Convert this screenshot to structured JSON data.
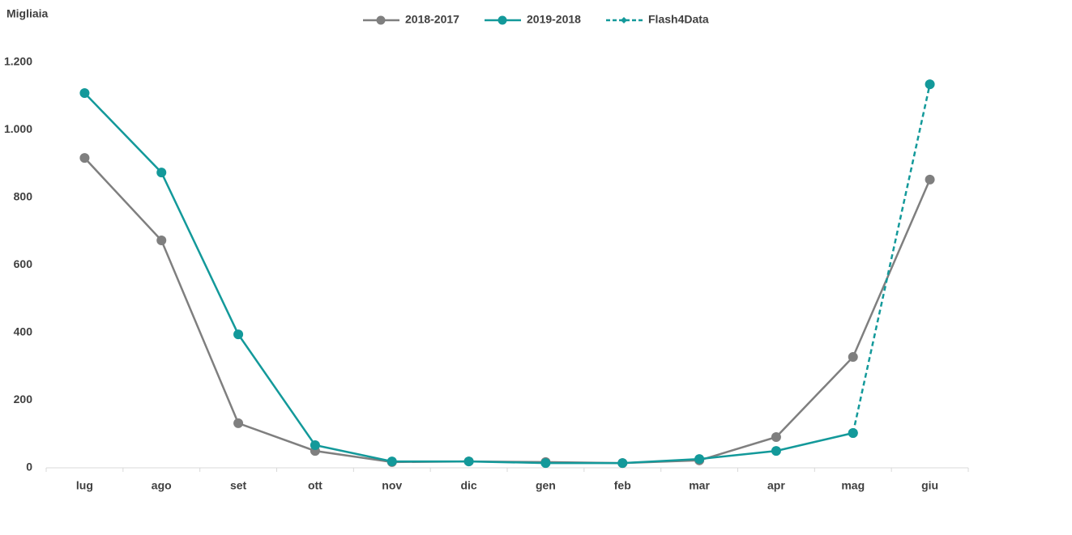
{
  "chart_data": {
    "type": "line",
    "y_label": "Migliaia",
    "categories": [
      "lug",
      "ago",
      "set",
      "ott",
      "nov",
      "dic",
      "gen",
      "feb",
      "mar",
      "apr",
      "mag",
      "giu"
    ],
    "series": [
      {
        "name": "2018-2017",
        "color": "#7f7f7f",
        "dashed": false,
        "values": [
          917,
          673,
          132,
          50,
          17,
          19,
          17,
          14,
          22,
          91,
          328,
          853
        ]
      },
      {
        "name": "2019-2018",
        "color": "#13999a",
        "dashed": false,
        "values": [
          1109,
          874,
          395,
          67,
          19,
          19,
          14,
          14,
          26,
          50,
          103,
          null
        ]
      },
      {
        "name": "Flash4Data",
        "color": "#13999a",
        "dashed": true,
        "values": [
          null,
          null,
          null,
          null,
          null,
          null,
          null,
          null,
          null,
          null,
          103,
          1135
        ]
      }
    ],
    "ylim": [
      0,
      1200
    ],
    "yticks": [
      0,
      200,
      400,
      600,
      800,
      {
        "value": 1000,
        "label": "1.000"
      },
      {
        "value": 1200,
        "label": "1.200"
      }
    ],
    "legend": "top",
    "grid": false
  }
}
